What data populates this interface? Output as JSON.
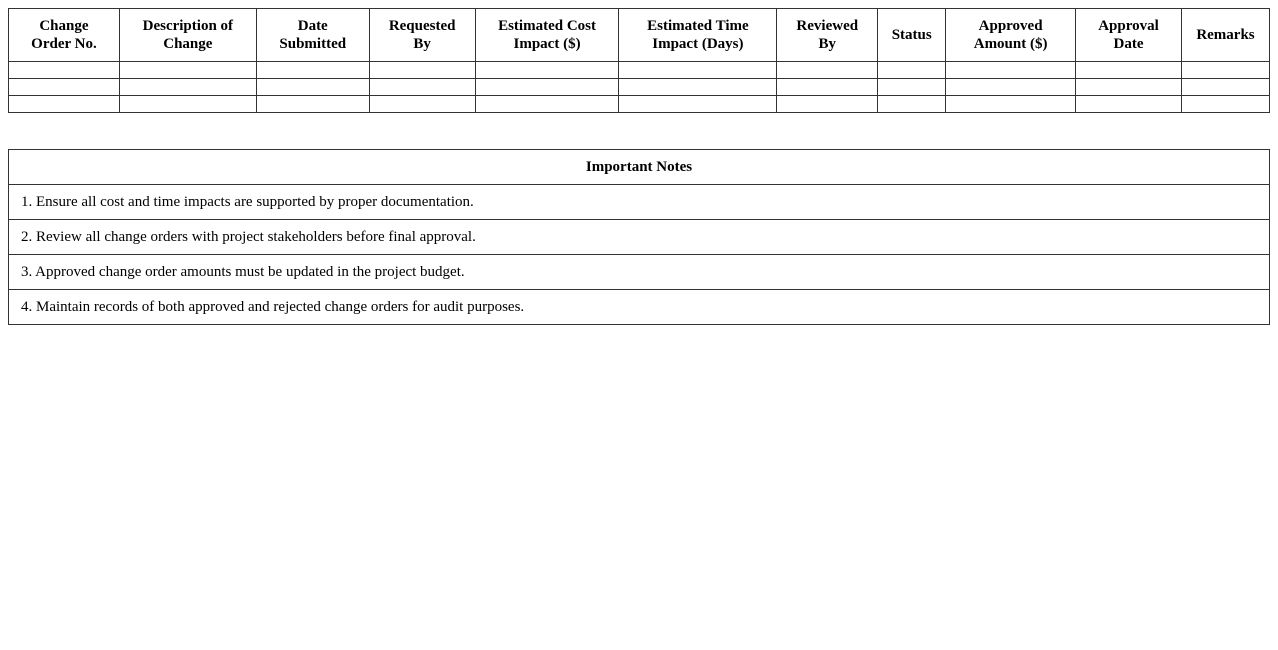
{
  "change_orders": {
    "headers": [
      "Change\nOrder No.",
      "Description of\nChange",
      "Date\nSubmitted",
      "Requested\nBy",
      "Estimated Cost\nImpact ($)",
      "Estimated Time\nImpact (Days)",
      "Reviewed\nBy",
      "Status",
      "Approved\nAmount ($)",
      "Approval\nDate",
      "Remarks"
    ],
    "rows": [
      [
        "",
        "",
        "",
        "",
        "",
        "",
        "",
        "",
        "",
        "",
        ""
      ],
      [
        "",
        "",
        "",
        "",
        "",
        "",
        "",
        "",
        "",
        "",
        ""
      ],
      [
        "",
        "",
        "",
        "",
        "",
        "",
        "",
        "",
        "",
        "",
        ""
      ]
    ]
  },
  "notes": {
    "title": "Important Notes",
    "items": [
      "1. Ensure all cost and time impacts are supported by proper documentation.",
      "2. Review all change orders with project stakeholders before final approval.",
      "3. Approved change order amounts must be updated in the project budget.",
      "4. Maintain records of both approved and rejected change orders for audit purposes."
    ]
  }
}
